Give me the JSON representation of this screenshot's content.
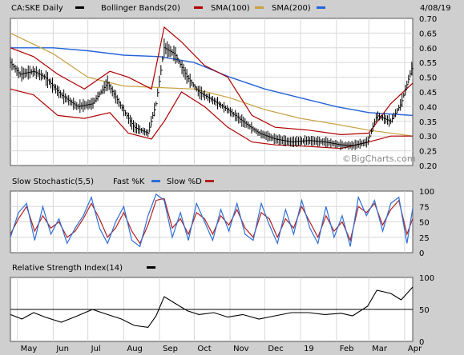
{
  "colors": {
    "price": "#000000",
    "bollinger": "#b00000",
    "sma100": "#c8a040",
    "sma200": "#2563d9",
    "stoch_fast": "#2f6fd6",
    "stoch_slow": "#b02020",
    "rsi": "#000000"
  },
  "chart_data": [
    {
      "type": "line",
      "panel": "price",
      "legend": {
        "ticker": "CA:SKE Daily",
        "bollinger": "Bollinger Bands(20)",
        "sma100": "SMA(100)",
        "sma200": "SMA(200)"
      },
      "date_label": "4/08/19",
      "watermark": "©BigCharts.com",
      "x_labels": [
        "May",
        "Jun",
        "Jul",
        "Aug",
        "Sep",
        "Oct",
        "Nov",
        "Dec",
        "19",
        "Feb",
        "Mar",
        "Apr"
      ],
      "x_range": [
        "2018-04-25",
        "2019-04-08"
      ],
      "ylim": [
        0.2,
        0.7
      ],
      "y_ticks": [
        "0.20",
        "0.25",
        "0.30",
        "0.35",
        "0.40",
        "0.45",
        "0.50",
        "0.55",
        "0.60",
        "0.65",
        "0.70"
      ],
      "grid": true,
      "series": [
        {
          "name": "CA:SKE Daily",
          "x": [
            "2018-04-25",
            "2018-05-03",
            "2018-05-15",
            "2018-05-25",
            "2018-06-08",
            "2018-06-22",
            "2018-07-05",
            "2018-07-18",
            "2018-07-30",
            "2018-08-10",
            "2018-08-22",
            "2018-08-29",
            "2018-09-05",
            "2018-09-14",
            "2018-09-25",
            "2018-10-05",
            "2018-10-18",
            "2018-10-30",
            "2018-11-12",
            "2018-11-26",
            "2018-12-10",
            "2018-12-24",
            "2019-01-08",
            "2019-01-22",
            "2019-02-05",
            "2019-02-15",
            "2019-02-28",
            "2019-03-08",
            "2019-03-20",
            "2019-03-29",
            "2019-04-08"
          ],
          "values": [
            0.55,
            0.51,
            0.52,
            0.5,
            0.44,
            0.4,
            0.41,
            0.48,
            0.4,
            0.33,
            0.31,
            0.41,
            0.6,
            0.58,
            0.5,
            0.45,
            0.42,
            0.39,
            0.35,
            0.31,
            0.29,
            0.28,
            0.285,
            0.28,
            0.27,
            0.268,
            0.28,
            0.37,
            0.35,
            0.41,
            0.54
          ]
        },
        {
          "name": "Bollinger Bands(20)",
          "band": "upper",
          "x": [
            "2018-04-25",
            "2018-05-15",
            "2018-06-05",
            "2018-06-28",
            "2018-07-20",
            "2018-08-05",
            "2018-08-25",
            "2018-09-05",
            "2018-09-20",
            "2018-10-10",
            "2018-10-30",
            "2018-11-20",
            "2018-12-10",
            "2019-01-08",
            "2019-02-05",
            "2019-03-01",
            "2019-03-20",
            "2019-04-08"
          ],
          "values": [
            0.6,
            0.57,
            0.51,
            0.46,
            0.52,
            0.5,
            0.46,
            0.67,
            0.62,
            0.54,
            0.5,
            0.37,
            0.33,
            0.32,
            0.305,
            0.31,
            0.41,
            0.48
          ]
        },
        {
          "name": "Bollinger Bands(20)",
          "band": "lower",
          "x": [
            "2018-04-25",
            "2018-05-15",
            "2018-06-05",
            "2018-06-28",
            "2018-07-20",
            "2018-08-05",
            "2018-08-25",
            "2018-09-05",
            "2018-09-20",
            "2018-10-10",
            "2018-10-30",
            "2018-11-20",
            "2018-12-10",
            "2019-01-08",
            "2019-02-05",
            "2019-03-01",
            "2019-03-20",
            "2019-04-08"
          ],
          "values": [
            0.46,
            0.44,
            0.37,
            0.36,
            0.38,
            0.31,
            0.29,
            0.35,
            0.45,
            0.4,
            0.33,
            0.28,
            0.27,
            0.265,
            0.258,
            0.28,
            0.3,
            0.3
          ]
        },
        {
          "name": "SMA(100)",
          "x": [
            "2018-04-25",
            "2018-06-01",
            "2018-07-01",
            "2018-08-01",
            "2018-09-01",
            "2018-10-01",
            "2018-11-01",
            "2018-12-01",
            "2019-01-01",
            "2019-02-01",
            "2019-03-01",
            "2019-04-08"
          ],
          "values": [
            0.65,
            0.58,
            0.5,
            0.47,
            0.465,
            0.46,
            0.43,
            0.39,
            0.36,
            0.34,
            0.32,
            0.3
          ]
        },
        {
          "name": "SMA(200)",
          "x": [
            "2018-04-25",
            "2018-06-01",
            "2018-07-01",
            "2018-08-01",
            "2018-09-01",
            "2018-10-01",
            "2018-11-01",
            "2018-12-01",
            "2019-01-01",
            "2019-02-01",
            "2019-03-01",
            "2019-04-08"
          ],
          "values": [
            0.6,
            0.6,
            0.59,
            0.575,
            0.57,
            0.55,
            0.5,
            0.46,
            0.43,
            0.4,
            0.38,
            0.37
          ]
        }
      ]
    },
    {
      "type": "line",
      "panel": "stochastic",
      "legend": {
        "title": "Slow Stochastic(5,5)",
        "fast": "Fast %K",
        "slow": "Slow %D"
      },
      "ylim": [
        0,
        100
      ],
      "y_ticks": [
        "0",
        "25",
        "50",
        "75",
        "100"
      ],
      "grid": true,
      "series": [
        {
          "name": "Fast %K",
          "x": [
            "2018-04-25",
            "2018-05-02",
            "2018-05-09",
            "2018-05-16",
            "2018-05-23",
            "2018-05-30",
            "2018-06-06",
            "2018-06-13",
            "2018-06-20",
            "2018-06-27",
            "2018-07-04",
            "2018-07-11",
            "2018-07-18",
            "2018-07-25",
            "2018-08-01",
            "2018-08-08",
            "2018-08-15",
            "2018-08-22",
            "2018-08-29",
            "2018-09-05",
            "2018-09-12",
            "2018-09-19",
            "2018-09-26",
            "2018-10-03",
            "2018-10-10",
            "2018-10-17",
            "2018-10-24",
            "2018-10-31",
            "2018-11-07",
            "2018-11-14",
            "2018-11-21",
            "2018-11-28",
            "2018-12-05",
            "2018-12-12",
            "2018-12-19",
            "2018-12-26",
            "2019-01-02",
            "2019-01-09",
            "2019-01-16",
            "2019-01-23",
            "2019-01-30",
            "2019-02-06",
            "2019-02-13",
            "2019-02-20",
            "2019-02-27",
            "2019-03-06",
            "2019-03-13",
            "2019-03-20",
            "2019-03-27",
            "2019-04-03",
            "2019-04-08"
          ],
          "values": [
            25,
            65,
            80,
            20,
            75,
            30,
            55,
            15,
            40,
            60,
            90,
            40,
            15,
            50,
            75,
            20,
            10,
            60,
            95,
            85,
            25,
            65,
            20,
            80,
            50,
            20,
            70,
            35,
            80,
            30,
            20,
            80,
            45,
            15,
            70,
            30,
            85,
            40,
            15,
            75,
            25,
            60,
            10,
            90,
            60,
            85,
            35,
            80,
            90,
            15,
            72
          ]
        },
        {
          "name": "Slow %D",
          "x": [
            "2018-04-25",
            "2018-05-02",
            "2018-05-09",
            "2018-05-16",
            "2018-05-23",
            "2018-05-30",
            "2018-06-06",
            "2018-06-13",
            "2018-06-20",
            "2018-06-27",
            "2018-07-04",
            "2018-07-11",
            "2018-07-18",
            "2018-07-25",
            "2018-08-01",
            "2018-08-08",
            "2018-08-15",
            "2018-08-22",
            "2018-08-29",
            "2018-09-05",
            "2018-09-12",
            "2018-09-19",
            "2018-09-26",
            "2018-10-03",
            "2018-10-10",
            "2018-10-17",
            "2018-10-24",
            "2018-10-31",
            "2018-11-07",
            "2018-11-14",
            "2018-11-21",
            "2018-11-28",
            "2018-12-05",
            "2018-12-12",
            "2018-12-19",
            "2018-12-26",
            "2019-01-02",
            "2019-01-09",
            "2019-01-16",
            "2019-01-23",
            "2019-01-30",
            "2019-02-06",
            "2019-02-13",
            "2019-02-20",
            "2019-02-27",
            "2019-03-06",
            "2019-03-13",
            "2019-03-20",
            "2019-03-27",
            "2019-04-03",
            "2019-04-08"
          ],
          "values": [
            30,
            55,
            75,
            35,
            60,
            40,
            50,
            25,
            35,
            55,
            80,
            55,
            25,
            40,
            65,
            35,
            15,
            45,
            85,
            88,
            40,
            55,
            30,
            65,
            55,
            30,
            60,
            45,
            70,
            40,
            25,
            65,
            55,
            25,
            55,
            40,
            75,
            50,
            25,
            60,
            35,
            50,
            20,
            75,
            65,
            80,
            45,
            70,
            85,
            30,
            55
          ]
        }
      ]
    },
    {
      "type": "line",
      "panel": "rsi",
      "legend": {
        "title": "Relative Strength Index(14)"
      },
      "ylim": [
        0,
        100
      ],
      "y_ticks": [
        "0",
        "50",
        "100"
      ],
      "reference_line": 50,
      "grid": true,
      "series": [
        {
          "name": "Relative Strength Index(14)",
          "x": [
            "2018-04-25",
            "2018-05-05",
            "2018-05-15",
            "2018-05-25",
            "2018-06-08",
            "2018-06-22",
            "2018-07-05",
            "2018-07-18",
            "2018-07-30",
            "2018-08-10",
            "2018-08-22",
            "2018-08-29",
            "2018-09-05",
            "2018-09-14",
            "2018-09-25",
            "2018-10-05",
            "2018-10-18",
            "2018-10-30",
            "2018-11-12",
            "2018-11-26",
            "2018-12-10",
            "2018-12-24",
            "2019-01-08",
            "2019-01-22",
            "2019-02-05",
            "2019-02-15",
            "2019-02-28",
            "2019-03-08",
            "2019-03-20",
            "2019-03-29",
            "2019-04-08"
          ],
          "values": [
            42,
            35,
            45,
            38,
            30,
            40,
            50,
            42,
            35,
            25,
            22,
            40,
            70,
            60,
            48,
            42,
            45,
            38,
            42,
            35,
            40,
            45,
            45,
            42,
            44,
            40,
            55,
            80,
            75,
            65,
            85
          ]
        }
      ]
    }
  ]
}
